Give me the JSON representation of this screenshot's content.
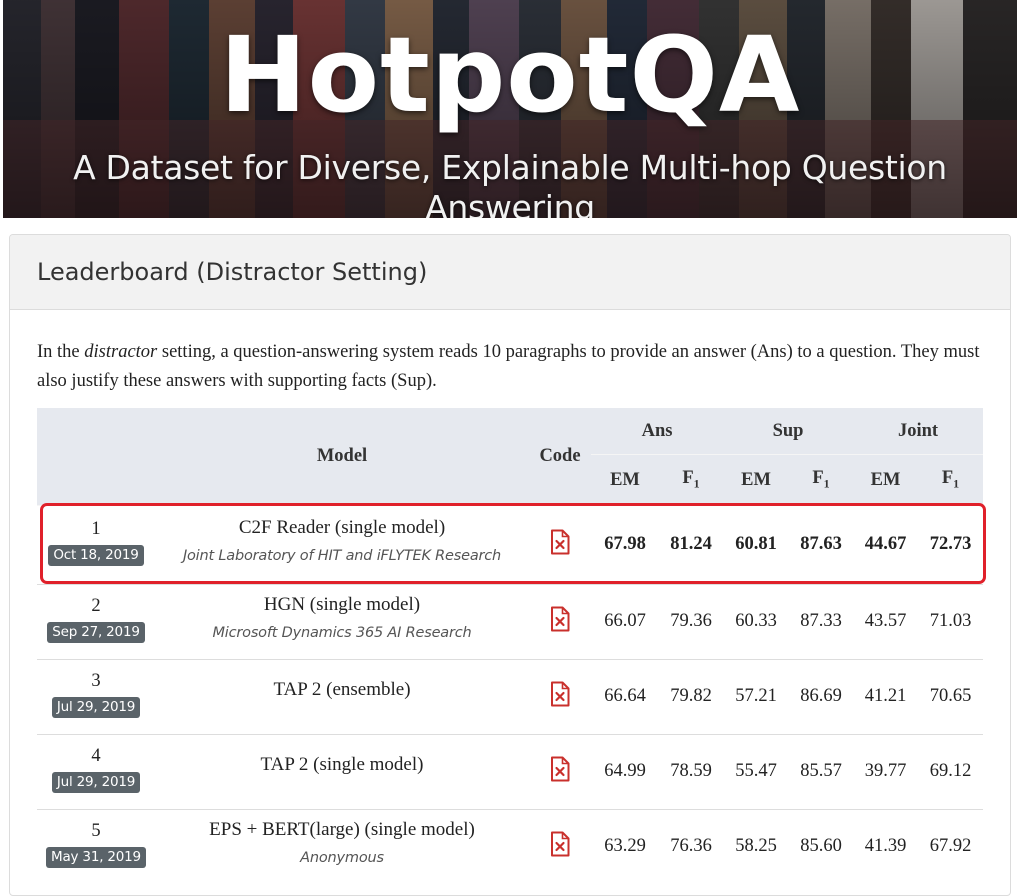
{
  "hero": {
    "title": "HotpotQA",
    "subtitle": "A Dataset for Diverse, Explainable Multi-hop Question Answering"
  },
  "panel": {
    "heading": "Leaderboard (Distractor Setting)",
    "intro_before": "In the ",
    "intro_em": "distractor",
    "intro_after": " setting, a question-answering system reads 10 paragraphs to provide an answer (Ans) to a question. They must also justify these answers with supporting facts (Sup)."
  },
  "table": {
    "headers": {
      "model": "Model",
      "code": "Code",
      "ans": "Ans",
      "sup": "Sup",
      "joint": "Joint",
      "em": "EM",
      "f1": "F",
      "f1_sub": "1"
    },
    "rows": [
      {
        "rank": "1",
        "date": "Oct 18, 2019",
        "model": "C2F Reader (single model)",
        "org": "Joint Laboratory of HIT and iFLYTEK Research",
        "ans_em": "67.98",
        "ans_f1": "81.24",
        "sup_em": "60.81",
        "sup_f1": "87.63",
        "joint_em": "44.67",
        "joint_f1": "72.73"
      },
      {
        "rank": "2",
        "date": "Sep 27, 2019",
        "model": "HGN (single model)",
        "org": "Microsoft Dynamics 365 AI Research",
        "ans_em": "66.07",
        "ans_f1": "79.36",
        "sup_em": "60.33",
        "sup_f1": "87.33",
        "joint_em": "43.57",
        "joint_f1": "71.03"
      },
      {
        "rank": "3",
        "date": "Jul 29, 2019",
        "model": "TAP 2 (ensemble)",
        "org": "",
        "ans_em": "66.64",
        "ans_f1": "79.82",
        "sup_em": "57.21",
        "sup_f1": "86.69",
        "joint_em": "41.21",
        "joint_f1": "70.65"
      },
      {
        "rank": "4",
        "date": "Jul 29, 2019",
        "model": "TAP 2 (single model)",
        "org": "",
        "ans_em": "64.99",
        "ans_f1": "78.59",
        "sup_em": "55.47",
        "sup_f1": "85.57",
        "joint_em": "39.77",
        "joint_f1": "69.12"
      },
      {
        "rank": "5",
        "date": "May 31, 2019",
        "model": "EPS + BERT(large) (single model)",
        "org": "Anonymous",
        "ans_em": "63.29",
        "ans_f1": "76.36",
        "sup_em": "58.25",
        "sup_f1": "85.60",
        "joint_em": "41.39",
        "joint_f1": "67.92"
      }
    ]
  },
  "colors": {
    "highlight": "#e0202a",
    "code_icon": "#c9302c",
    "badge": "#5a6369",
    "header_bg": "#e6e9ef"
  },
  "icons": {
    "code": "file-x-icon"
  }
}
